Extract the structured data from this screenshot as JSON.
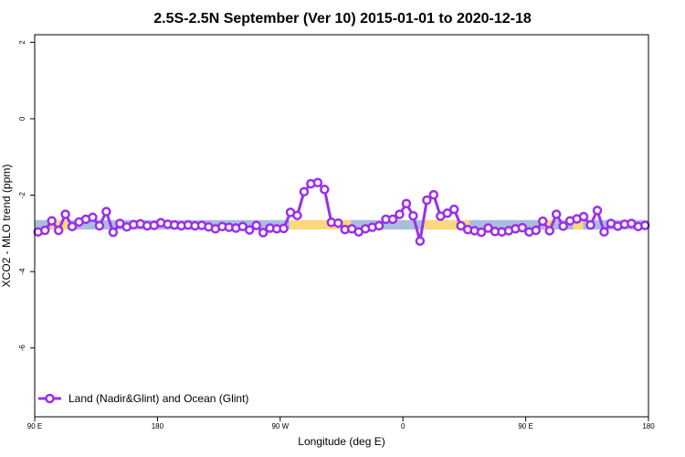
{
  "chart_data": {
    "type": "line",
    "title": "2.5S-2.5N September (Ver 10)   2015-01-01 to 2020-12-18",
    "xlabel": "Longitude (deg E)",
    "ylabel": "XCO2 - MLO trend (ppm)",
    "x_ticks": [
      {
        "x": 90,
        "label": "90 E"
      },
      {
        "x": 180,
        "label": "180"
      },
      {
        "x": 270,
        "label": "90 W"
      },
      {
        "x": 360,
        "label": "0"
      },
      {
        "x": 450,
        "label": "90 E"
      },
      {
        "x": 540,
        "label": "180"
      }
    ],
    "y_ticks": [
      {
        "y": 2,
        "label": "2"
      },
      {
        "y": 0,
        "label": "0"
      },
      {
        "y": -2,
        "label": "-2"
      },
      {
        "y": -4,
        "label": "-4"
      },
      {
        "y": -6,
        "label": "-6"
      }
    ],
    "xlim": [
      90,
      540
    ],
    "ylim": [
      -7.8,
      2.2
    ],
    "grid": false,
    "legend_position": "bottom-left",
    "band": {
      "y_low": -2.9,
      "y_high": -2.65,
      "colors": {
        "ocean": "#a9bde0",
        "land": "#fcd87c"
      },
      "segments": [
        {
          "x0": 90,
          "x1": 102,
          "type": "ocean"
        },
        {
          "x0": 102,
          "x1": 115,
          "type": "land"
        },
        {
          "x0": 115,
          "x1": 277,
          "type": "ocean"
        },
        {
          "x0": 277,
          "x1": 322,
          "type": "land"
        },
        {
          "x0": 322,
          "x1": 375,
          "type": "ocean"
        },
        {
          "x0": 375,
          "x1": 409,
          "type": "land"
        },
        {
          "x0": 409,
          "x1": 464,
          "type": "ocean"
        },
        {
          "x0": 464,
          "x1": 470,
          "type": "land"
        },
        {
          "x0": 470,
          "x1": 485,
          "type": "ocean"
        },
        {
          "x0": 485,
          "x1": 492,
          "type": "land"
        },
        {
          "x0": 492,
          "x1": 540,
          "type": "ocean"
        }
      ]
    },
    "series": [
      {
        "name": "Land (Nadir&Glint) and Ocean (Glint)",
        "color": "#9b30e8",
        "x": [
          92.5,
          97.5,
          102.5,
          107.5,
          112.5,
          117.5,
          122.5,
          127.5,
          132.5,
          137.5,
          142.5,
          147.5,
          152.5,
          157.5,
          162.5,
          167.5,
          172.5,
          177.5,
          182.5,
          187.5,
          192.5,
          197.5,
          202.5,
          207.5,
          212.5,
          217.5,
          222.5,
          227.5,
          232.5,
          237.5,
          242.5,
          247.5,
          252.5,
          257.5,
          262.5,
          267.5,
          272.5,
          277.5,
          282.5,
          287.5,
          292.5,
          297.5,
          302.5,
          307.5,
          312.5,
          317.5,
          322.5,
          327.5,
          332.5,
          337.5,
          342.5,
          347.5,
          352.5,
          357.5,
          362.5,
          367.5,
          372.5,
          377.5,
          382.5,
          387.5,
          392.5,
          397.5,
          402.5,
          407.5,
          412.5,
          417.5,
          422.5,
          427.5,
          432.5,
          437.5,
          442.5,
          447.5,
          452.5,
          457.5,
          462.5,
          467.5,
          472.5,
          477.5,
          482.5,
          487.5,
          492.5,
          497.5,
          502.5,
          507.5,
          512.5,
          517.5,
          522.5,
          527.5,
          532.5,
          537.5
        ],
        "y": [
          -2.96,
          -2.92,
          -2.67,
          -2.92,
          -2.5,
          -2.82,
          -2.7,
          -2.63,
          -2.58,
          -2.8,
          -2.43,
          -2.97,
          -2.74,
          -2.83,
          -2.77,
          -2.75,
          -2.8,
          -2.79,
          -2.72,
          -2.76,
          -2.78,
          -2.8,
          -2.78,
          -2.8,
          -2.79,
          -2.83,
          -2.88,
          -2.82,
          -2.84,
          -2.86,
          -2.82,
          -2.91,
          -2.79,
          -2.98,
          -2.86,
          -2.88,
          -2.87,
          -2.45,
          -2.53,
          -1.91,
          -1.7,
          -1.67,
          -1.85,
          -2.71,
          -2.73,
          -2.9,
          -2.88,
          -2.96,
          -2.88,
          -2.84,
          -2.8,
          -2.63,
          -2.63,
          -2.5,
          -2.22,
          -2.54,
          -3.2,
          -2.13,
          -1.99,
          -2.55,
          -2.47,
          -2.37,
          -2.8,
          -2.9,
          -2.93,
          -2.97,
          -2.86,
          -2.95,
          -2.96,
          -2.93,
          -2.88,
          -2.85,
          -2.96,
          -2.92,
          -2.68,
          -2.93,
          -2.5,
          -2.81,
          -2.67,
          -2.62,
          -2.56,
          -2.78,
          -2.4,
          -2.96,
          -2.74,
          -2.81,
          -2.76,
          -2.74,
          -2.82,
          -2.79
        ]
      }
    ]
  }
}
